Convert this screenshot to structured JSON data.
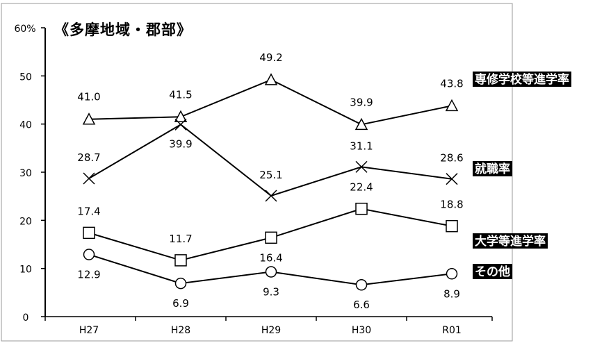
{
  "chart_data": {
    "type": "line",
    "title": "《多摩地域・郡部》",
    "categories": [
      "H27",
      "H28",
      "H29",
      "H30",
      "R01"
    ],
    "y_ticks": [
      "0",
      "10",
      "20",
      "30",
      "40",
      "50",
      "60%"
    ],
    "ylim": [
      0,
      60
    ],
    "grid": false,
    "series": [
      {
        "name": "専修学校等進学率",
        "marker": "triangle",
        "values": [
          41.0,
          41.5,
          49.2,
          39.9,
          43.8
        ],
        "labels": [
          "41.0",
          "41.5",
          "49.2",
          "39.9",
          "43.8"
        ]
      },
      {
        "name": "就職率",
        "marker": "x",
        "values": [
          28.7,
          39.9,
          25.1,
          31.1,
          28.6
        ],
        "labels": [
          "28.7",
          "39.9",
          "25.1",
          "31.1",
          "28.6"
        ]
      },
      {
        "name": "大学等進学率",
        "marker": "square",
        "values": [
          17.4,
          11.7,
          16.4,
          22.4,
          18.8
        ],
        "labels": [
          "17.4",
          "11.7",
          "16.4",
          "22.4",
          "18.8"
        ]
      },
      {
        "name": "その他",
        "marker": "circle",
        "values": [
          12.9,
          6.9,
          9.3,
          6.6,
          8.9
        ],
        "labels": [
          "12.9",
          "6.9",
          "9.3",
          "6.6",
          "8.9"
        ]
      }
    ]
  }
}
